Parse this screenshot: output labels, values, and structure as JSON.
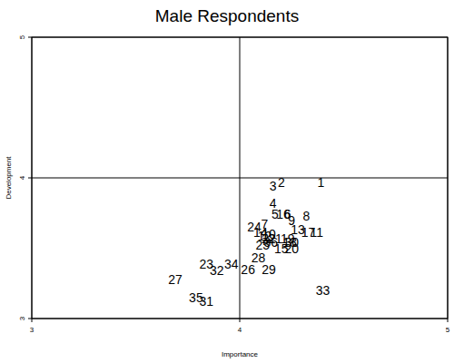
{
  "chart_data": {
    "type": "scatter",
    "title": "Male Respondents",
    "x_label": "Importance",
    "y_label": "Development",
    "labels": [
      "1",
      "2",
      "3",
      "4",
      "5",
      "6",
      "7",
      "8",
      "9",
      "10",
      "11",
      "12",
      "13",
      "14",
      "15",
      "16",
      "17",
      "18",
      "19",
      "20",
      "21",
      "22",
      "23",
      "24",
      "25",
      "26",
      "27",
      "28",
      "29",
      "30",
      "31",
      "32",
      "33",
      "34",
      "35",
      "36"
    ],
    "x": [
      4.39,
      4.2,
      4.16,
      4.16,
      4.17,
      4.23,
      4.12,
      4.32,
      4.25,
      4.14,
      4.37,
      4.12,
      4.28,
      4.1,
      4.2,
      4.21,
      4.33,
      4.24,
      4.23,
      4.25,
      4.17,
      4.14,
      3.84,
      4.07,
      4.11,
      4.04,
      3.69,
      4.09,
      4.14,
      4.25,
      3.84,
      3.89,
      4.4,
      3.96,
      3.79,
      4.15
    ],
    "values": [
      3.97,
      3.97,
      3.94,
      3.82,
      3.74,
      3.74,
      3.67,
      3.73,
      3.7,
      3.6,
      3.61,
      3.59,
      3.63,
      3.61,
      3.5,
      3.74,
      3.61,
      3.54,
      3.57,
      3.5,
      3.57,
      3.57,
      3.39,
      3.65,
      3.52,
      3.35,
      3.28,
      3.43,
      3.35,
      3.54,
      3.12,
      3.34,
      3.2,
      3.39,
      3.15,
      3.54
    ],
    "xlim": [
      3,
      5
    ],
    "ylim": [
      3,
      5
    ],
    "xticks": [
      3,
      4,
      5
    ],
    "yticks": [
      3,
      4,
      5
    ],
    "grid": true,
    "marker": "none",
    "color": "#000000"
  }
}
